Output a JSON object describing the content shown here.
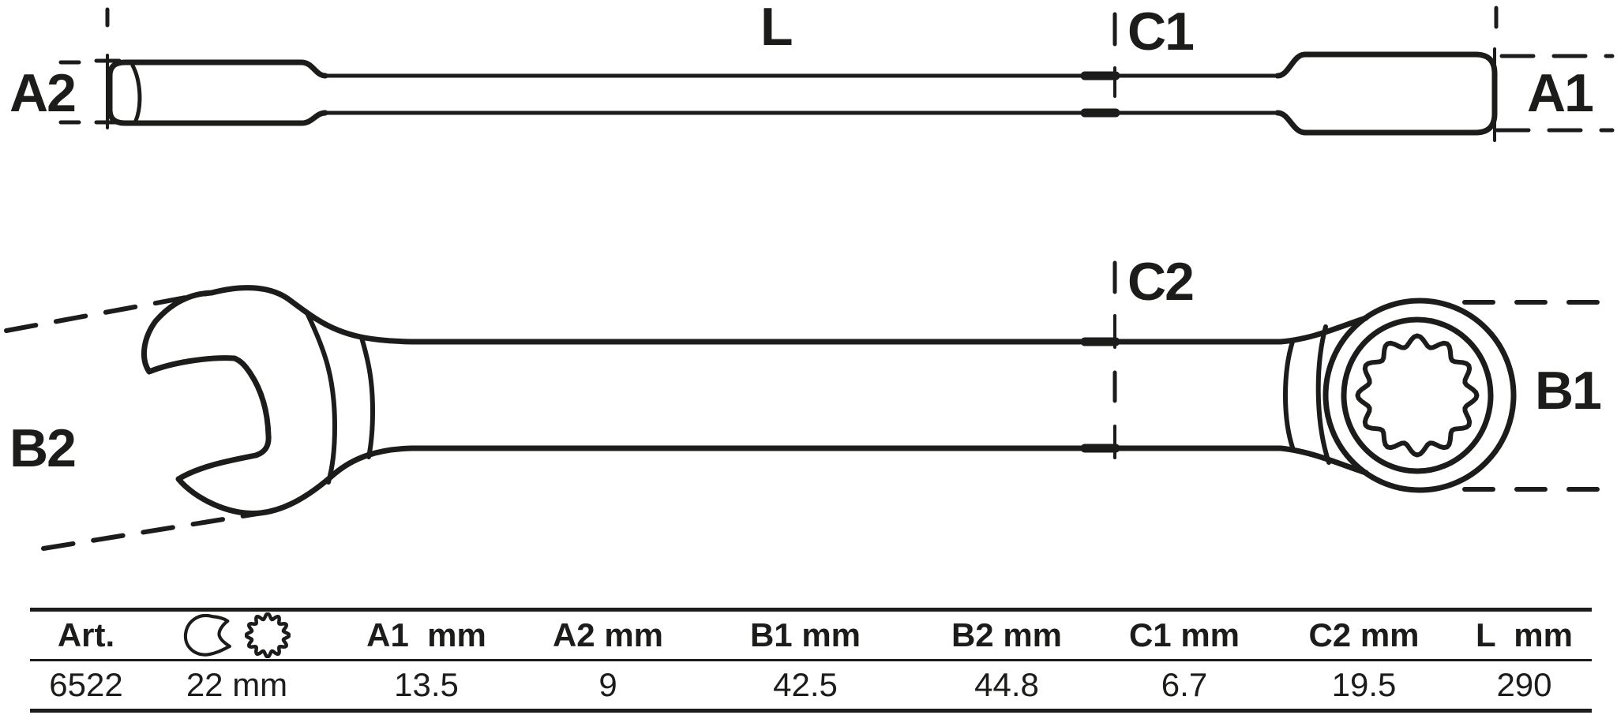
{
  "colors": {
    "ink": "#1c1c1b",
    "background": "#ffffff"
  },
  "diagram": {
    "side_view_labels": {
      "a2": "A2",
      "l": "L",
      "c1": "C1",
      "a1": "A1"
    },
    "plan_view_labels": {
      "b2": "B2",
      "c2": "C2",
      "b1": "B1"
    }
  },
  "table": {
    "columns": [
      {
        "id": "art",
        "header": "Art.",
        "value": "6522"
      },
      {
        "id": "size",
        "header": "",
        "value": "22 mm",
        "icons": [
          "open-end-wrench-icon",
          "ring-wrench-icon"
        ]
      },
      {
        "id": "a1",
        "header": "A1  mm",
        "value": "13.5"
      },
      {
        "id": "a2",
        "header": "A2 mm",
        "value": "9"
      },
      {
        "id": "b1",
        "header": "B1 mm",
        "value": "42.5"
      },
      {
        "id": "b2",
        "header": "B2 mm",
        "value": "44.8"
      },
      {
        "id": "c1",
        "header": "C1 mm",
        "value": "6.7"
      },
      {
        "id": "c2",
        "header": "C2 mm",
        "value": "19.5"
      },
      {
        "id": "l",
        "header": "L  mm",
        "value": "290"
      }
    ]
  }
}
